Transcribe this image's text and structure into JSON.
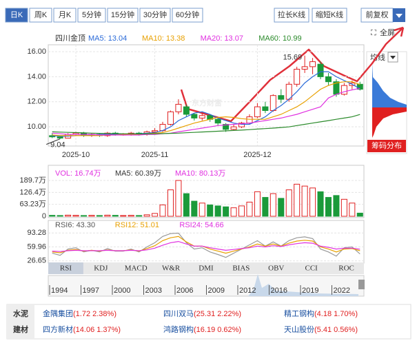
{
  "toolbar": {
    "periods": [
      "日K",
      "周K",
      "月K",
      "5分钟",
      "15分钟",
      "30分钟",
      "60分钟"
    ],
    "zoom": [
      "拉长K线",
      "缩短K线"
    ],
    "adjust": "前复权",
    "fullscreen": "全屏"
  },
  "watermark": "东方财富",
  "chip": {
    "select": "均线",
    "title": "筹码分布"
  },
  "indicators": {
    "tabs": [
      "RSI",
      "KDJ",
      "MACD",
      "W&R",
      "DMI",
      "BIAS",
      "OBV",
      "CCI",
      "ROC"
    ],
    "selected": 0
  },
  "timeline": {
    "years": [
      "1994",
      "1997",
      "2000",
      "2003",
      "2006",
      "2009",
      "2012",
      "2016",
      "2019",
      "2022"
    ]
  },
  "peers": {
    "sector": [
      "水泥",
      "建材"
    ],
    "rows": [
      [
        {
          "name": "金隅集团",
          "quote": "(1.72 2.38%)"
        },
        {
          "name": "四川双马",
          "quote": "(25.31 2.22%)"
        },
        {
          "name": "精工钢构",
          "quote": "(4.18 1.70%)"
        }
      ],
      [
        {
          "name": "四方新材",
          "quote": "(14.06 1.37%)"
        },
        {
          "name": "鸿路钢构",
          "quote": "(16.19 0.62%)"
        },
        {
          "name": "天山股份",
          "quote": "(5.41 0.56%)"
        }
      ]
    ]
  },
  "chart_data": [
    {
      "type": "candlestick",
      "title": "四川金顶",
      "up_color": "#e02020",
      "down_color": "#1a9a3a",
      "categories": [
        null,
        null,
        null,
        "2025-10",
        null,
        null,
        null,
        null,
        null,
        null,
        null,
        null,
        null,
        "2025-11",
        null,
        null,
        null,
        null,
        null,
        null,
        null,
        null,
        null,
        null,
        null,
        null,
        "2025-12",
        null,
        null,
        null,
        null,
        null,
        null,
        null,
        null,
        null,
        null,
        null,
        null,
        null
      ],
      "open": [
        9.3,
        9.2,
        9.1,
        9.4,
        9.5,
        9.3,
        9.4,
        9.3,
        9.5,
        9.4,
        9.4,
        9.5,
        9.4,
        9.6,
        9.7,
        10.2,
        11.2,
        11.6,
        11.0,
        10.7,
        10.9,
        10.6,
        10.2,
        9.8,
        10.0,
        10.3,
        10.8,
        11.6,
        11.3,
        12.5,
        12.2,
        13.4,
        14.6,
        14.8,
        15.0,
        14.0,
        13.6,
        12.6,
        13.3,
        13.4
      ],
      "close": [
        9.2,
        9.1,
        9.4,
        9.5,
        9.3,
        9.4,
        9.3,
        9.5,
        9.4,
        9.4,
        9.5,
        9.4,
        9.6,
        9.7,
        10.2,
        11.2,
        11.8,
        11.0,
        10.7,
        10.9,
        10.6,
        10.3,
        9.8,
        10.0,
        10.3,
        10.8,
        11.6,
        11.3,
        12.5,
        12.2,
        13.4,
        14.6,
        14.8,
        15.2,
        14.0,
        13.6,
        12.6,
        13.3,
        13.5,
        13.0
      ],
      "high": [
        9.5,
        9.3,
        9.5,
        9.6,
        9.6,
        9.5,
        9.5,
        9.6,
        9.6,
        9.5,
        9.6,
        9.6,
        9.7,
        9.9,
        10.4,
        11.3,
        12.2,
        11.8,
        11.1,
        11.1,
        11.0,
        10.7,
        10.3,
        10.2,
        10.4,
        11.0,
        11.9,
        12.0,
        12.6,
        13.0,
        13.6,
        14.8,
        15.69,
        15.5,
        15.2,
        14.3,
        13.8,
        13.5,
        13.7,
        13.6
      ],
      "low": [
        9.1,
        9.04,
        9.1,
        9.3,
        9.2,
        9.2,
        9.2,
        9.2,
        9.3,
        9.3,
        9.3,
        9.3,
        9.3,
        9.5,
        9.6,
        10.1,
        11.0,
        10.8,
        10.5,
        10.5,
        10.4,
        10.1,
        9.6,
        9.7,
        9.9,
        10.2,
        10.7,
        11.1,
        11.2,
        11.9,
        12.0,
        13.2,
        14.3,
        14.2,
        13.8,
        13.3,
        12.4,
        12.5,
        13.0,
        12.9
      ],
      "series": [
        {
          "name": "MA5: 13.04",
          "color": "#2a6ad8",
          "values": [
            9.3,
            9.25,
            9.25,
            9.3,
            9.3,
            9.35,
            9.4,
            9.4,
            9.4,
            9.4,
            9.45,
            9.45,
            9.5,
            9.55,
            9.7,
            10.0,
            10.5,
            10.8,
            11.1,
            11.2,
            11.0,
            10.7,
            10.5,
            10.3,
            10.2,
            10.2,
            10.5,
            10.8,
            11.3,
            11.7,
            12.2,
            12.8,
            13.5,
            14.0,
            14.4,
            14.4,
            14.0,
            13.7,
            13.4,
            13.04
          ]
        },
        {
          "name": "MA10: 13.38",
          "color": "#e8a000",
          "values": [
            9.35,
            9.3,
            9.3,
            9.3,
            9.3,
            9.3,
            9.3,
            9.35,
            9.35,
            9.4,
            9.4,
            9.4,
            9.45,
            9.5,
            9.55,
            9.7,
            9.9,
            10.1,
            10.3,
            10.45,
            10.6,
            10.75,
            10.8,
            10.75,
            10.65,
            10.6,
            10.6,
            10.6,
            10.8,
            11.0,
            11.3,
            11.6,
            12.0,
            12.5,
            13.0,
            13.3,
            13.5,
            13.6,
            13.6,
            13.38
          ]
        },
        {
          "name": "MA20: 13.07",
          "color": "#e030e0",
          "values": [
            9.5,
            9.45,
            9.4,
            9.4,
            9.4,
            9.4,
            9.35,
            9.35,
            9.35,
            9.35,
            9.35,
            9.35,
            9.4,
            9.4,
            9.45,
            9.5,
            9.6,
            9.7,
            9.8,
            9.9,
            10.0,
            10.1,
            10.15,
            10.2,
            10.25,
            10.3,
            10.4,
            10.5,
            10.6,
            10.7,
            10.85,
            11.0,
            11.2,
            11.4,
            11.6,
            12.3,
            12.6,
            12.8,
            12.95,
            13.07
          ]
        },
        {
          "name": "MA60: 10.99",
          "color": "#2a8a2a",
          "values": [
            9.6,
            9.58,
            9.56,
            9.54,
            9.52,
            9.5,
            9.48,
            9.47,
            9.46,
            9.45,
            9.45,
            9.44,
            9.44,
            9.45,
            9.46,
            9.48,
            9.5,
            9.53,
            9.56,
            9.59,
            9.62,
            9.65,
            9.68,
            9.71,
            9.74,
            9.78,
            9.82,
            9.86,
            9.9,
            9.95,
            10.0,
            10.1,
            10.2,
            10.3,
            10.4,
            10.5,
            10.6,
            10.7,
            10.8,
            10.99
          ]
        }
      ],
      "ylim": [
        8.47,
        16.55
      ],
      "yticks": [
        {
          "value": 16,
          "label": "16.00"
        },
        {
          "value": 14,
          "label": "14.00"
        },
        {
          "value": 12,
          "label": "12.00"
        },
        {
          "value": 10,
          "label": "10.00"
        }
      ],
      "grid": true
    },
    {
      "type": "bar",
      "legend": [
        {
          "text": "VOL: 16.74万",
          "color": "#e030e0"
        },
        {
          "text": "MA5: 60.39万",
          "color": "#333333"
        },
        {
          "text": "MA10: 80.13万",
          "color": "#e030e0"
        }
      ],
      "values": [
        5,
        4,
        6,
        5,
        4,
        5,
        4,
        6,
        5,
        4,
        5,
        4,
        8,
        15,
        60,
        140,
        189.7,
        120,
        80,
        70,
        60,
        55,
        50,
        45,
        55,
        75,
        130,
        100,
        120,
        95,
        140,
        170,
        160,
        150,
        130,
        100,
        110,
        90,
        70,
        16.74
      ],
      "ylim": [
        0,
        270
      ],
      "yticks": [
        {
          "value": 189.7,
          "label": "189.7万"
        },
        {
          "value": 126.4,
          "label": "126.4万"
        },
        {
          "value": 63.23,
          "label": "63.23万"
        },
        0
      ],
      "grid": true
    },
    {
      "type": "line",
      "series": [
        {
          "name": "RSI6: 43.30",
          "color": "#999999",
          "values": [
            45,
            40,
            55,
            58,
            48,
            52,
            48,
            56,
            50,
            50,
            55,
            48,
            60,
            70,
            85,
            92,
            93,
            70,
            55,
            58,
            48,
            42,
            35,
            45,
            55,
            65,
            75,
            62,
            72,
            62,
            75,
            82,
            84,
            80,
            55,
            48,
            38,
            58,
            60,
            43.3
          ]
        },
        {
          "name": "RSI12: 51.01",
          "color": "#e8a000",
          "values": [
            48,
            46,
            52,
            54,
            50,
            52,
            50,
            53,
            51,
            51,
            53,
            50,
            56,
            63,
            75,
            82,
            85,
            72,
            62,
            62,
            55,
            50,
            45,
            50,
            55,
            60,
            67,
            62,
            67,
            62,
            69,
            74,
            76,
            74,
            60,
            55,
            48,
            55,
            56,
            51.01
          ]
        },
        {
          "name": "RSI24: 54.66",
          "color": "#e030e0",
          "values": [
            50,
            49,
            51,
            52,
            51,
            51,
            51,
            52,
            51,
            51,
            52,
            51,
            53,
            57,
            64,
            70,
            73,
            67,
            62,
            62,
            58,
            55,
            52,
            54,
            56,
            58,
            62,
            60,
            63,
            61,
            65,
            68,
            70,
            69,
            62,
            59,
            55,
            57,
            57,
            54.66
          ]
        }
      ],
      "ylim": [
        23,
        102
      ],
      "yticks": [
        93.28,
        59.96,
        26.65
      ],
      "grid": true
    }
  ]
}
